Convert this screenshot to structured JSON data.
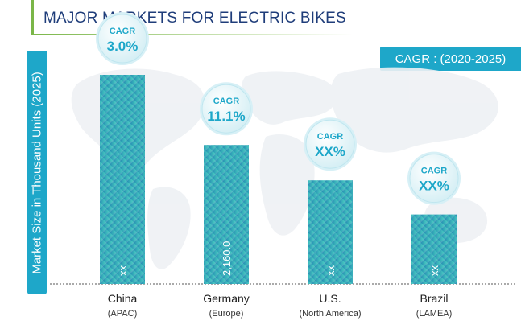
{
  "chart_data": {
    "type": "bar",
    "title": "MAJOR MARKETS FOR ELECTRIC BIKES",
    "cagr_period_label": "CAGR : (2020-2025)",
    "ylabel": "Market Size in Thousand Units  (2025)",
    "xlabel": "",
    "grid": false,
    "categories": [
      {
        "name": "China",
        "region": "(APAC)"
      },
      {
        "name": "Germany",
        "region": "(Europe)"
      },
      {
        "name": "U.S.",
        "region": "(North America)"
      },
      {
        "name": "Brazil",
        "region": "(LAMEA)"
      }
    ],
    "values": [
      3250,
      2160,
      1610,
      1080
    ],
    "bar_labels": [
      "xx",
      "2,160.0",
      "xx",
      "xx"
    ],
    "cagr_heading": "CAGR",
    "cagr_values": [
      "3.0%",
      "11.1%",
      "XX%",
      "XX%"
    ],
    "ylim": [
      0,
      4000
    ],
    "colors": {
      "bar_light": "#4ed0c3",
      "bar_dark": "#1f86b0",
      "accent": "#1ea7c9",
      "title": "#1f3d7a",
      "title_rule": "#7ab648"
    }
  }
}
